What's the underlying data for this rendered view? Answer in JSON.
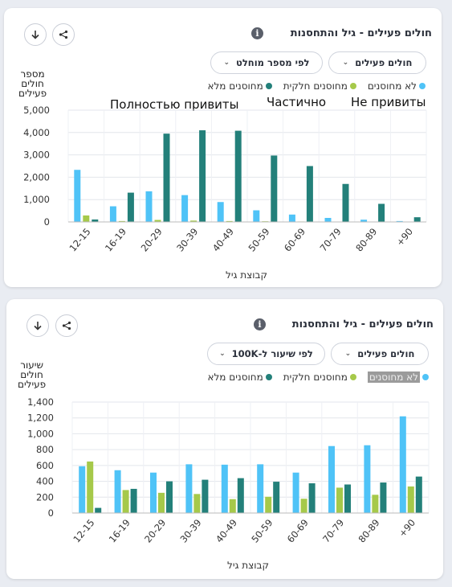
{
  "colors": {
    "unvacc": "#4fc3f7",
    "partial": "#a6c94a",
    "full": "#23807a"
  },
  "cards": [
    {
      "title": "חולים פעילים - גיל והתחסנות",
      "dropdowns": [
        "חולים פעילים",
        "לפי מספר מוחלט"
      ],
      "legend": [
        "לא מחוסנים",
        "מחוסנים חלקית",
        "מחוסנים מלא"
      ],
      "ylabel": "מספר\nחולים\nפעילים",
      "xlabel": "קבוצת גיל",
      "overlays": [
        "Полностью привиты",
        "Частично",
        "Не привиты"
      ]
    },
    {
      "title": "חולים פעילים - גיל והתחסנות",
      "dropdowns": [
        "חולים פעילים",
        "לפי שיעור ל-100K"
      ],
      "legend": [
        "לא מחוסנים",
        "מחוסנים חלקית",
        "מחוסנים מלא"
      ],
      "ylabel": "שיעור\nחולים\nפעילים",
      "xlabel": "קבוצת גיל"
    }
  ],
  "chart_data": [
    {
      "type": "bar",
      "categories": [
        "12-15",
        "16-19",
        "20-29",
        "30-39",
        "40-49",
        "50-59",
        "60-69",
        "70-79",
        "80-89",
        "+90"
      ],
      "series": [
        {
          "name": "לא מחוסנים",
          "values": [
            2330,
            700,
            1370,
            1200,
            890,
            520,
            330,
            180,
            100,
            40
          ]
        },
        {
          "name": "מחוסנים חלקית",
          "values": [
            290,
            40,
            90,
            60,
            40,
            30,
            20,
            15,
            10,
            5
          ]
        },
        {
          "name": "מחוסנים מלא",
          "values": [
            110,
            1310,
            3950,
            4100,
            4080,
            2970,
            2500,
            1700,
            810,
            210
          ]
        }
      ],
      "ylim": [
        0,
        5000
      ],
      "yticks": [
        "5,000",
        "4,000",
        "3,000",
        "2,000",
        "1,000",
        "0"
      ],
      "ytick_values": [
        5000,
        4000,
        3000,
        2000,
        1000,
        0
      ],
      "ylabel": "מספר חולים פעילים",
      "xlabel": "קבוצת גיל",
      "grid": true
    },
    {
      "type": "bar",
      "categories": [
        "12-15",
        "16-19",
        "20-29",
        "30-39",
        "40-49",
        "50-59",
        "60-69",
        "70-79",
        "80-89",
        "+90"
      ],
      "series": [
        {
          "name": "לא מחוסנים",
          "values": [
            590,
            540,
            510,
            615,
            610,
            615,
            510,
            845,
            855,
            1220
          ]
        },
        {
          "name": "מחוסנים חלקית",
          "values": [
            650,
            290,
            255,
            240,
            175,
            205,
            180,
            320,
            230,
            335
          ]
        },
        {
          "name": "מחוסנים מלא",
          "values": [
            65,
            305,
            400,
            420,
            440,
            395,
            375,
            360,
            385,
            460
          ]
        }
      ],
      "ylim": [
        0,
        1400
      ],
      "yticks": [
        "1,400",
        "1,200",
        "1,000",
        "800",
        "600",
        "400",
        "200",
        "0"
      ],
      "ytick_values": [
        1400,
        1200,
        1000,
        800,
        600,
        400,
        200,
        0
      ],
      "ylabel": "שיעור חולים פעילים",
      "xlabel": "קבוצת גיל",
      "grid": true
    }
  ]
}
